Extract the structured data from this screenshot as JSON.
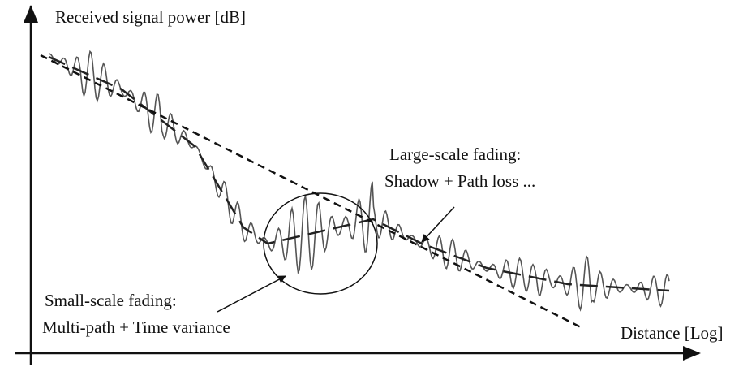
{
  "y_axis_label": "Received signal power [dB]",
  "x_axis_label": "Distance [Log]",
  "large_scale": {
    "title": "Large-scale fading:",
    "detail": "Shadow  + Path loss ..."
  },
  "small_scale": {
    "title": "Small-scale fading:",
    "detail": "Multi-path + Time variance"
  }
}
